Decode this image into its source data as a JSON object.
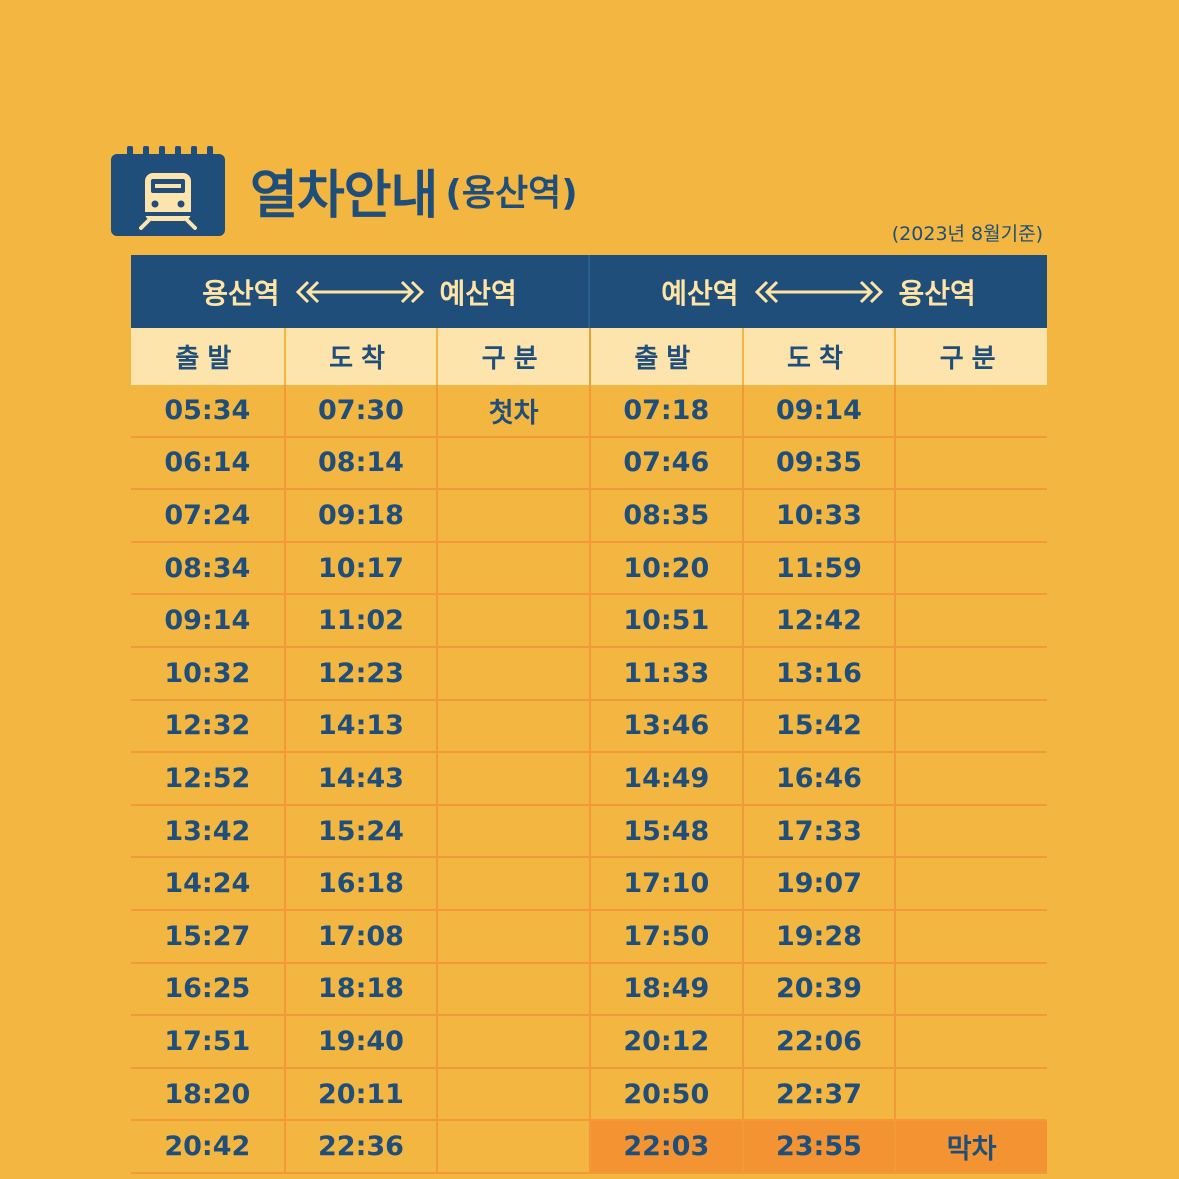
{
  "title": {
    "main": "열차안내",
    "sub": "(용산역)",
    "icon": "train-calendar-icon"
  },
  "basis_note": "(2023년 8월기준)",
  "routes": [
    {
      "from": "용산역",
      "to": "예산역"
    },
    {
      "from": "예산역",
      "to": "용산역"
    }
  ],
  "columns": [
    "출발",
    "도착",
    "구분",
    "출발",
    "도착",
    "구분"
  ],
  "rows": [
    [
      "05:34",
      "07:30",
      "첫차",
      "07:18",
      "09:14",
      ""
    ],
    [
      "06:14",
      "08:14",
      "",
      "07:46",
      "09:35",
      ""
    ],
    [
      "07:24",
      "09:18",
      "",
      "08:35",
      "10:33",
      ""
    ],
    [
      "08:34",
      "10:17",
      "",
      "10:20",
      "11:59",
      ""
    ],
    [
      "09:14",
      "11:02",
      "",
      "10:51",
      "12:42",
      ""
    ],
    [
      "10:32",
      "12:23",
      "",
      "11:33",
      "13:16",
      ""
    ],
    [
      "12:32",
      "14:13",
      "",
      "13:46",
      "15:42",
      ""
    ],
    [
      "12:52",
      "14:43",
      "",
      "14:49",
      "16:46",
      ""
    ],
    [
      "13:42",
      "15:24",
      "",
      "15:48",
      "17:33",
      ""
    ],
    [
      "14:24",
      "16:18",
      "",
      "17:10",
      "19:07",
      ""
    ],
    [
      "15:27",
      "17:08",
      "",
      "17:50",
      "19:28",
      ""
    ],
    [
      "16:25",
      "18:18",
      "",
      "18:49",
      "20:39",
      ""
    ],
    [
      "17:51",
      "19:40",
      "",
      "20:12",
      "22:06",
      ""
    ],
    [
      "18:20",
      "20:11",
      "",
      "20:50",
      "22:37",
      ""
    ],
    [
      "20:42",
      "22:36",
      "",
      "22:03",
      "23:55",
      "막차"
    ]
  ],
  "colors": {
    "background": "#F2B641",
    "navy": "#1E4E79",
    "header_light": "#FDE3AC",
    "grid_line": "#F29A3A",
    "last_train_highlight": "#F39331"
  }
}
